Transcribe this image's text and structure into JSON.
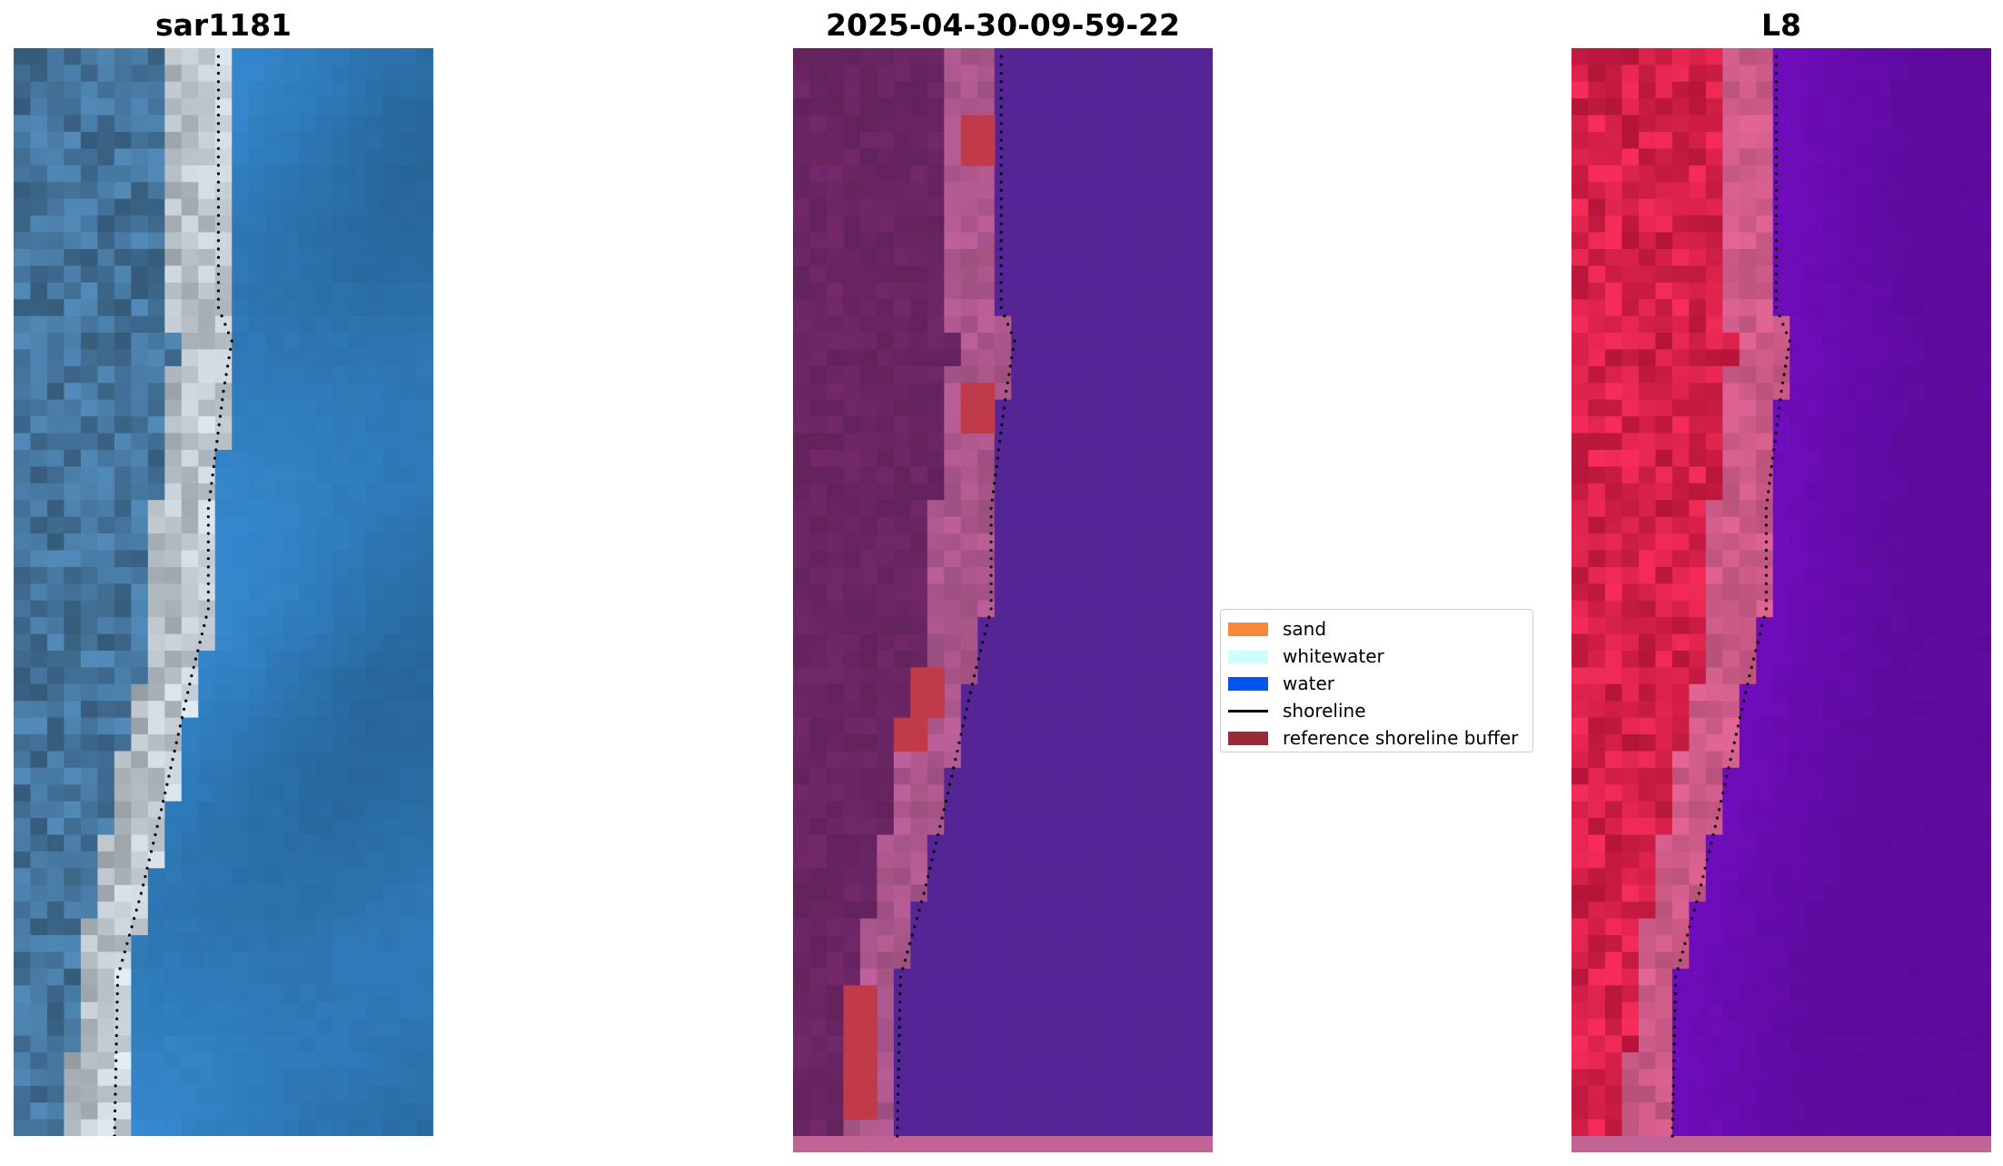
{
  "panels": [
    {
      "title": "sar1181"
    },
    {
      "title": "2025-04-30-09-59-22"
    },
    {
      "title": "L8"
    }
  ],
  "legend": {
    "items": [
      {
        "label": "sand",
        "kind": "patch",
        "color": "#f6893b"
      },
      {
        "label": "whitewater",
        "kind": "patch",
        "color": "#ccffff"
      },
      {
        "label": "water",
        "kind": "patch",
        "color": "#0055ee"
      },
      {
        "label": "shoreline",
        "kind": "line",
        "color": "#000000"
      },
      {
        "label": "reference shoreline buffer",
        "kind": "patch",
        "color": "#9a2a3a"
      }
    ]
  },
  "colors": {
    "rgb_land": "#3f6b8f",
    "rgb_sand": "#dfe9f2",
    "rgb_water": "#2a6ea6",
    "class_land": "#6a2563",
    "class_beach": "#b0598f",
    "class_water": "#552596",
    "class_buffer": "#c03a4a",
    "mndwi_land": "#c8173f",
    "mndwi_beach": "#d8608f",
    "mndwi_water": "#5b0a9a",
    "strip": "#c16495"
  }
}
